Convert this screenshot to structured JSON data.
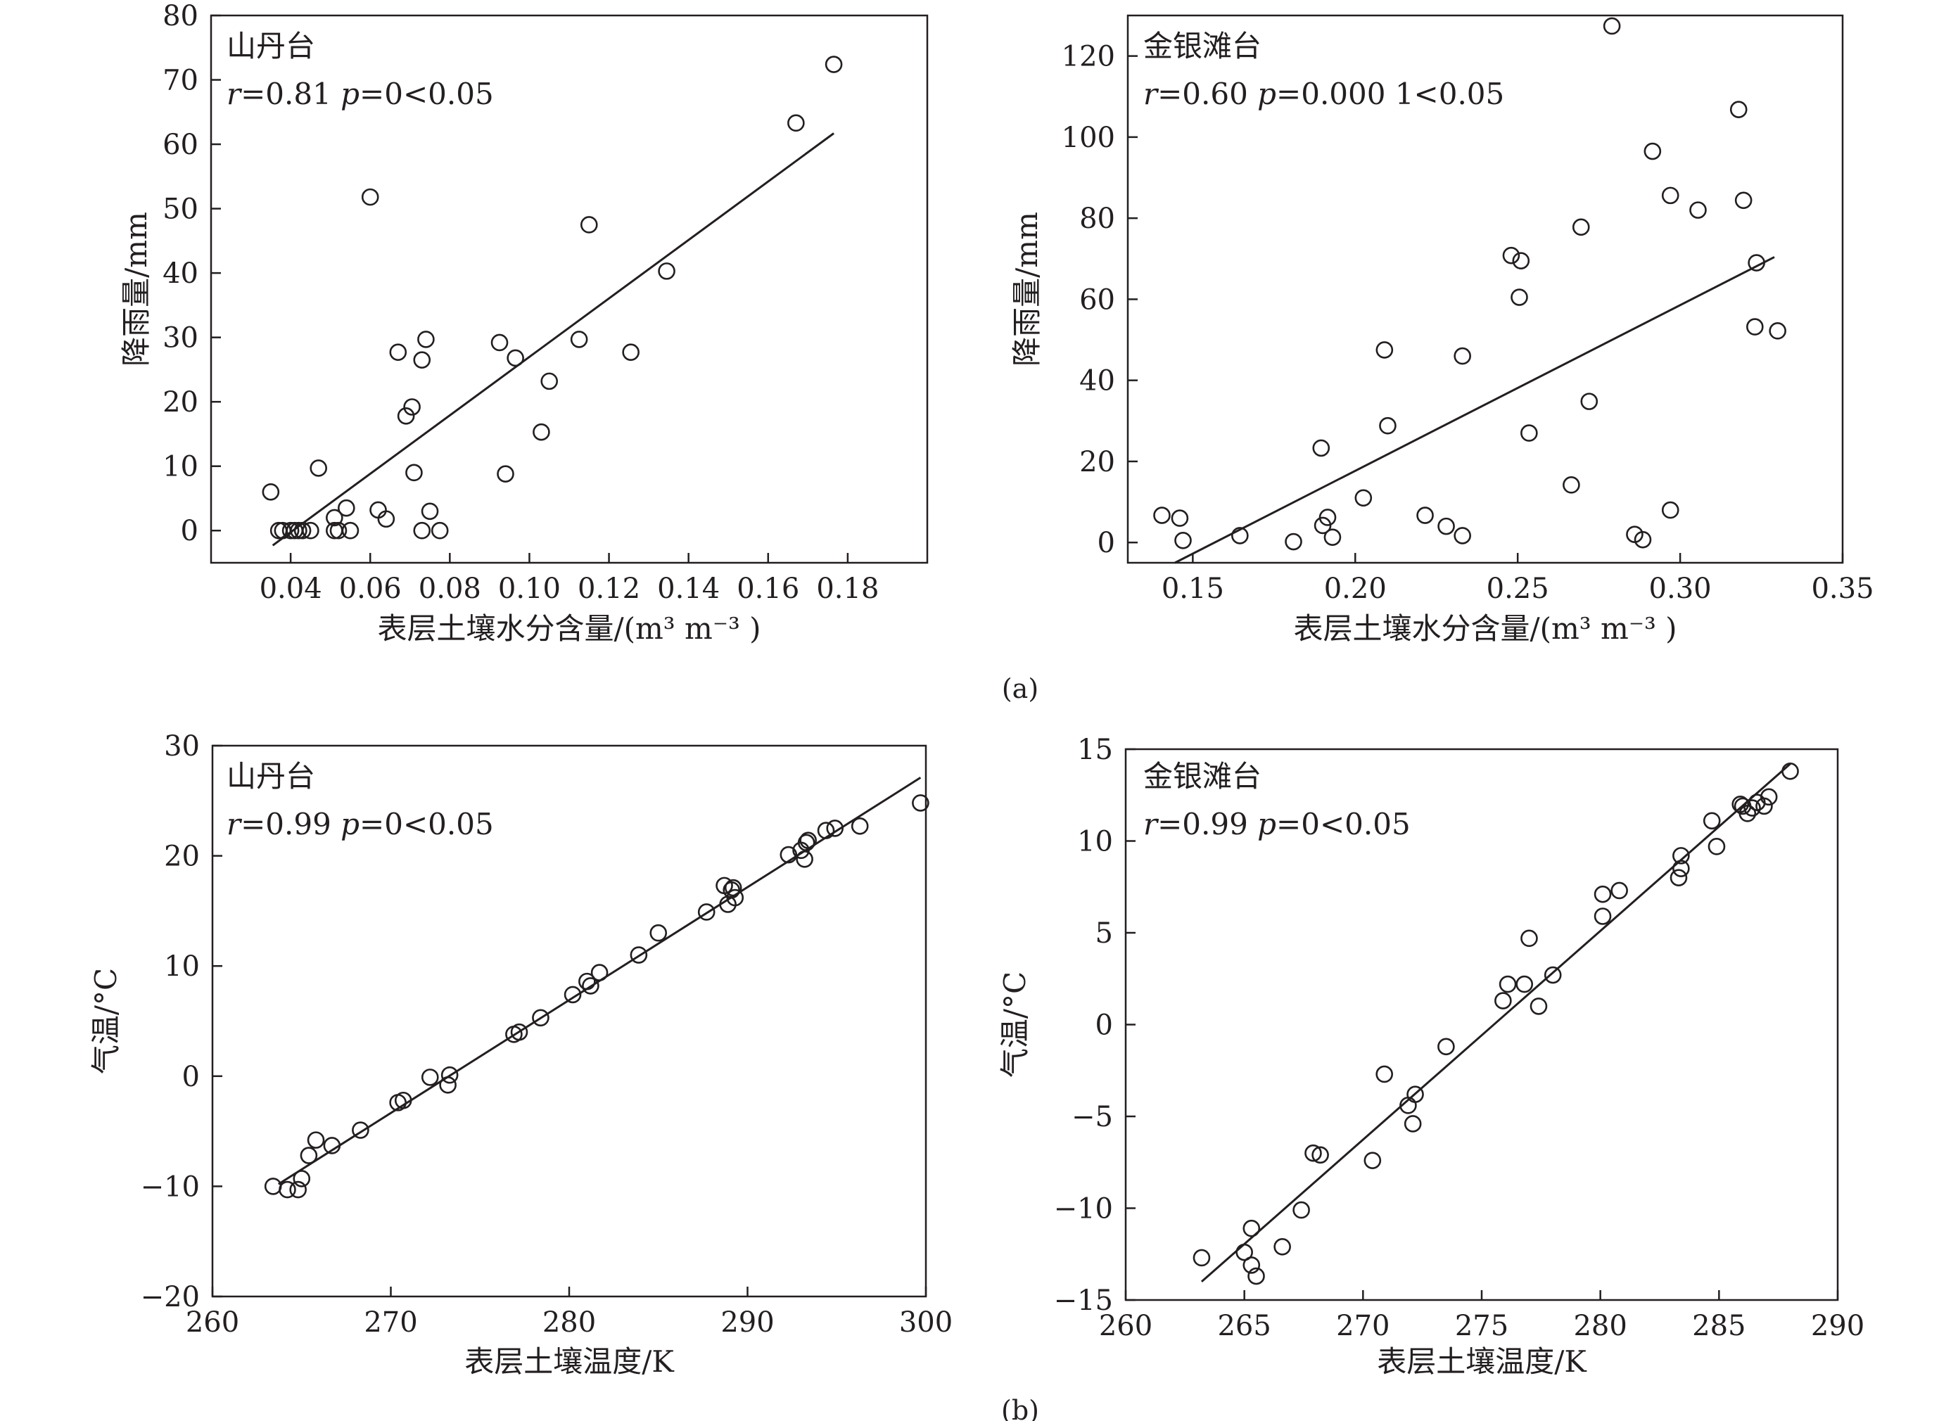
{
  "figure": {
    "part_a_label": "(a)",
    "part_b_label": "(b)"
  },
  "chart_data": [
    {
      "type": "scatter",
      "panel": "a-left",
      "station": "山丹台",
      "stats": {
        "r_symbol": "r",
        "r_value": "=0.81",
        "p_symbol": "p",
        "p_value": "=0<0.05"
      },
      "xlabel": "表层土壤水分含量/(m³ m⁻³ )",
      "ylabel": "降雨量/mm",
      "xlim": [
        0.02,
        0.2
      ],
      "ylim": [
        -5,
        80
      ],
      "xticks": [
        0.04,
        0.06,
        0.08,
        0.1,
        0.12,
        0.14,
        0.16,
        0.18
      ],
      "xtick_labels": [
        "0.04",
        "0.06",
        "0.08",
        "0.10",
        "0.12",
        "0.14",
        "0.16",
        "0.18"
      ],
      "yticks": [
        0,
        10,
        20,
        30,
        40,
        50,
        60,
        70,
        80
      ],
      "ytick_labels": [
        "0",
        "10",
        "20",
        "30",
        "40",
        "50",
        "60",
        "70",
        "80"
      ],
      "fit_line": [
        [
          0.0355,
          -2.3
        ],
        [
          0.1765,
          61.7
        ]
      ],
      "points": [
        [
          0.035,
          6
        ],
        [
          0.037,
          0
        ],
        [
          0.038,
          0
        ],
        [
          0.04,
          0
        ],
        [
          0.041,
          0
        ],
        [
          0.042,
          0
        ],
        [
          0.043,
          0
        ],
        [
          0.045,
          0
        ],
        [
          0.047,
          9.7
        ],
        [
          0.051,
          2
        ],
        [
          0.051,
          0
        ],
        [
          0.052,
          0
        ],
        [
          0.054,
          3.5
        ],
        [
          0.055,
          0
        ],
        [
          0.06,
          51.8
        ],
        [
          0.062,
          3.2
        ],
        [
          0.064,
          1.8
        ],
        [
          0.067,
          27.7
        ],
        [
          0.069,
          17.8
        ],
        [
          0.0705,
          19.2
        ],
        [
          0.071,
          9
        ],
        [
          0.073,
          26.5
        ],
        [
          0.073,
          0
        ],
        [
          0.074,
          29.7
        ],
        [
          0.075,
          3
        ],
        [
          0.0775,
          0
        ],
        [
          0.0925,
          29.2
        ],
        [
          0.094,
          8.8
        ],
        [
          0.0965,
          26.8
        ],
        [
          0.103,
          15.3
        ],
        [
          0.105,
          23.2
        ],
        [
          0.1125,
          29.7
        ],
        [
          0.115,
          47.5
        ],
        [
          0.1255,
          27.7
        ],
        [
          0.1345,
          40.3
        ],
        [
          0.167,
          63.3
        ],
        [
          0.1765,
          72.4
        ]
      ]
    },
    {
      "type": "scatter",
      "panel": "a-right",
      "station": "金银滩台",
      "stats": {
        "r_symbol": "r",
        "r_value": "=0.60",
        "p_symbol": "p",
        "p_value": "=0.000 1<0.05"
      },
      "xlabel": "表层土壤水分含量/(m³ m⁻³ )",
      "ylabel": "降雨量/mm",
      "xlim": [
        0.13,
        0.35
      ],
      "ylim": [
        -5,
        130
      ],
      "xticks": [
        0.15,
        0.2,
        0.25,
        0.3,
        0.35
      ],
      "xtick_labels": [
        "0.15",
        "0.20",
        "0.25",
        "0.30",
        "0.35"
      ],
      "yticks": [
        0,
        20,
        40,
        60,
        80,
        100,
        120
      ],
      "ytick_labels": [
        "0",
        "20",
        "40",
        "60",
        "80",
        "100",
        "120"
      ],
      "fit_line": [
        [
          0.1445,
          -5
        ],
        [
          0.329,
          70.4
        ]
      ],
      "points": [
        [
          0.1405,
          6.7
        ],
        [
          0.146,
          6
        ],
        [
          0.147,
          0.5
        ],
        [
          0.1645,
          1.7
        ],
        [
          0.181,
          0.2
        ],
        [
          0.1895,
          23.3
        ],
        [
          0.19,
          4.2
        ],
        [
          0.1915,
          6.2
        ],
        [
          0.193,
          1.3
        ],
        [
          0.2025,
          11
        ],
        [
          0.209,
          47.5
        ],
        [
          0.21,
          28.8
        ],
        [
          0.2215,
          6.7
        ],
        [
          0.228,
          4
        ],
        [
          0.233,
          46
        ],
        [
          0.233,
          1.7
        ],
        [
          0.248,
          70.8
        ],
        [
          0.2505,
          60.5
        ],
        [
          0.251,
          69.5
        ],
        [
          0.2535,
          27
        ],
        [
          0.2665,
          14.2
        ],
        [
          0.2695,
          77.8
        ],
        [
          0.272,
          34.8
        ],
        [
          0.279,
          127.4
        ],
        [
          0.286,
          2
        ],
        [
          0.2885,
          0.7
        ],
        [
          0.2915,
          96.5
        ],
        [
          0.297,
          85.6
        ],
        [
          0.297,
          8
        ],
        [
          0.3055,
          82
        ],
        [
          0.318,
          106.8
        ],
        [
          0.3195,
          84.4
        ],
        [
          0.323,
          53.2
        ],
        [
          0.3235,
          69
        ],
        [
          0.33,
          52.2
        ]
      ]
    },
    {
      "type": "scatter",
      "panel": "b-left",
      "station": "山丹台",
      "stats": {
        "r_symbol": "r",
        "r_value": "=0.99",
        "p_symbol": "p",
        "p_value": "=0<0.05"
      },
      "xlabel": "表层土壤温度/K",
      "ylabel": "气温/°C",
      "xlim": [
        260,
        300
      ],
      "ylim": [
        -20,
        30
      ],
      "xticks": [
        260,
        270,
        280,
        290,
        300
      ],
      "xtick_labels": [
        "260",
        "270",
        "280",
        "290",
        "300"
      ],
      "yticks": [
        -20,
        -10,
        0,
        10,
        20,
        30
      ],
      "ytick_labels": [
        "−20",
        "−10",
        "0",
        "10",
        "20",
        "30"
      ],
      "fit_line": [
        [
          263.7,
          -9.8
        ],
        [
          299.7,
          27.1
        ]
      ],
      "points": [
        [
          263.4,
          -10
        ],
        [
          264.2,
          -10.3
        ],
        [
          264.8,
          -10.3
        ],
        [
          265,
          -9.3
        ],
        [
          265.4,
          -7.2
        ],
        [
          265.8,
          -5.8
        ],
        [
          266.7,
          -6.3
        ],
        [
          268.3,
          -4.9
        ],
        [
          270.4,
          -2.4
        ],
        [
          270.7,
          -2.2
        ],
        [
          272.2,
          -0.1
        ],
        [
          273.2,
          -0.8
        ],
        [
          273.3,
          0.1
        ],
        [
          276.9,
          3.8
        ],
        [
          277.2,
          4
        ],
        [
          278.4,
          5.3
        ],
        [
          280.2,
          7.4
        ],
        [
          281,
          8.6
        ],
        [
          281.2,
          8.2
        ],
        [
          281.7,
          9.4
        ],
        [
          283.9,
          11
        ],
        [
          285,
          13
        ],
        [
          287.7,
          14.9
        ],
        [
          288.7,
          17.3
        ],
        [
          288.9,
          15.6
        ],
        [
          289.1,
          16.9
        ],
        [
          289.2,
          17.1
        ],
        [
          289.3,
          16.2
        ],
        [
          292.3,
          20.1
        ],
        [
          293,
          20.5
        ],
        [
          293.2,
          19.7
        ],
        [
          293.3,
          21.2
        ],
        [
          293.4,
          21.4
        ],
        [
          294.4,
          22.3
        ],
        [
          294.9,
          22.5
        ],
        [
          296.3,
          22.7
        ],
        [
          299.7,
          24.8
        ]
      ]
    },
    {
      "type": "scatter",
      "panel": "b-right",
      "station": "金银滩台",
      "stats": {
        "r_symbol": "r",
        "r_value": "=0.99",
        "p_symbol": "p",
        "p_value": "=0<0.05"
      },
      "xlabel": "表层土壤温度/K",
      "ylabel": "气温/°C",
      "xlim": [
        260,
        290
      ],
      "ylim": [
        -15,
        15
      ],
      "xticks": [
        260,
        265,
        270,
        275,
        280,
        285,
        290
      ],
      "xtick_labels": [
        "260",
        "265",
        "270",
        "275",
        "280",
        "285",
        "290"
      ],
      "yticks": [
        -15,
        -10,
        -5,
        0,
        5,
        10,
        15
      ],
      "ytick_labels": [
        "−15",
        "−10",
        "−5",
        "0",
        "5",
        "10",
        "15"
      ],
      "fit_line": [
        [
          263.2,
          -14
        ],
        [
          288,
          14.2
        ]
      ],
      "points": [
        [
          263.2,
          -12.7
        ],
        [
          265,
          -12.4
        ],
        [
          265.3,
          -11.1
        ],
        [
          265.3,
          -13.1
        ],
        [
          265.5,
          -13.7
        ],
        [
          266.6,
          -12.1
        ],
        [
          267.4,
          -10.1
        ],
        [
          267.9,
          -7
        ],
        [
          268.2,
          -7.1
        ],
        [
          270.4,
          -7.4
        ],
        [
          270.9,
          -2.7
        ],
        [
          271.9,
          -4.4
        ],
        [
          272.1,
          -5.4
        ],
        [
          272.2,
          -3.8
        ],
        [
          273.5,
          -1.2
        ],
        [
          275.9,
          1.3
        ],
        [
          276.1,
          2.2
        ],
        [
          276.8,
          2.2
        ],
        [
          277,
          4.7
        ],
        [
          277.4,
          1
        ],
        [
          278,
          2.7
        ],
        [
          280.1,
          7.1
        ],
        [
          280.1,
          5.9
        ],
        [
          280.8,
          7.3
        ],
        [
          283.3,
          8
        ],
        [
          283.4,
          9.2
        ],
        [
          283.4,
          8.5
        ],
        [
          284.7,
          11.1
        ],
        [
          284.9,
          9.7
        ],
        [
          285.9,
          12
        ],
        [
          286,
          11.9
        ],
        [
          286.2,
          11.5
        ],
        [
          286.4,
          11.8
        ],
        [
          286.6,
          12.1
        ],
        [
          286.9,
          11.9
        ],
        [
          287.1,
          12.4
        ],
        [
          288,
          13.8
        ]
      ]
    }
  ]
}
